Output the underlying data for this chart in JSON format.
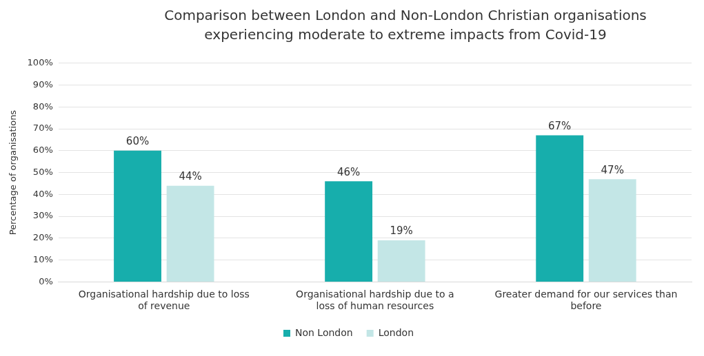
{
  "chart_data": {
    "type": "bar",
    "title": "Comparison between London and Non-London Christian organisations experiencing moderate to extreme impacts from Covid-19",
    "ylabel": "Percentage of organisations",
    "categories": [
      "Organisational hardship due to loss of revenue",
      "Organisational hardship due to a loss of human resources",
      "Greater demand for our services than before"
    ],
    "series": [
      {
        "name": "Non London",
        "color": "#17aeac",
        "values": [
          60,
          46,
          67
        ],
        "value_labels": [
          "60%",
          "46%",
          "67%"
        ]
      },
      {
        "name": "London",
        "color": "#c3e6e6",
        "values": [
          44,
          19,
          47
        ],
        "value_labels": [
          "44%",
          "19%",
          "47%"
        ]
      }
    ],
    "ylim": [
      0,
      100
    ],
    "yticks": [
      {
        "value": 0,
        "label": "0%"
      },
      {
        "value": 10,
        "label": "10%"
      },
      {
        "value": 20,
        "label": "20%"
      },
      {
        "value": 30,
        "label": "30%"
      },
      {
        "value": 40,
        "label": "40%"
      },
      {
        "value": 50,
        "label": "50%"
      },
      {
        "value": 60,
        "label": "60%"
      },
      {
        "value": 70,
        "label": "70%"
      },
      {
        "value": 80,
        "label": "80%"
      },
      {
        "value": 90,
        "label": "90%"
      },
      {
        "value": 100,
        "label": "100%"
      }
    ],
    "grid": "y",
    "legend": "bottom"
  }
}
